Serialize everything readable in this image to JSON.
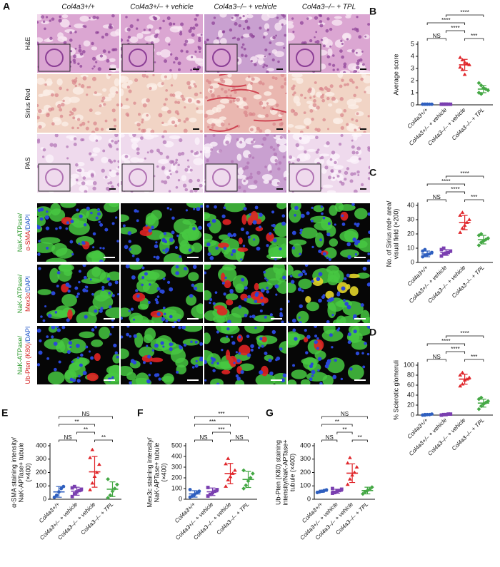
{
  "panel_a": {
    "panel": "A",
    "columns": [
      "Col4a3+/+",
      "Col4a3+/– + vehicle",
      "Col4a3–/– + vehicle",
      "Col4a3–/– + TPL"
    ],
    "rows": [
      {
        "lines": [
          [
            {
              "text": "H&E",
              "color": "#222222"
            }
          ]
        ]
      },
      {
        "lines": [
          [
            {
              "text": "Sirius Red",
              "color": "#222222"
            }
          ]
        ]
      },
      {
        "lines": [
          [
            {
              "text": "PAS",
              "color": "#222222"
            }
          ]
        ]
      },
      {
        "lines": [
          [
            {
              "text": "NaK-ATPase/",
              "color": "#2e9a2e"
            }
          ],
          [
            {
              "text": "α-SMA",
              "color": "#d42020"
            },
            {
              "text": "/DAPI",
              "color": "#1f55c8"
            }
          ]
        ]
      },
      {
        "lines": [
          [
            {
              "text": "NaK-ATPase/",
              "color": "#2e9a2e"
            }
          ],
          [
            {
              "text": "Mex3c",
              "color": "#d42020"
            },
            {
              "text": "/DAPI",
              "color": "#1f55c8"
            }
          ]
        ]
      },
      {
        "lines": [
          [
            {
              "text": "NaK-ATPase/",
              "color": "#2e9a2e"
            }
          ],
          [
            {
              "text": "Ub-Pten (K80)",
              "color": "#d42020"
            },
            {
              "text": "/DAPI",
              "color": "#1f55c8"
            }
          ]
        ]
      }
    ]
  },
  "chart_data": [
    {
      "type": "dot",
      "panel": "B",
      "ylabel": [
        "Average score"
      ],
      "categories": [
        "Col4a3+/+",
        "Col4a3+/– + vehicle",
        "Col4a3–/– + vehicle",
        "Col4a3–/– + TPL"
      ],
      "colors": [
        "#2f5fbf",
        "#7a3fb0",
        "#e0262b",
        "#45a845"
      ],
      "markers": [
        "circle",
        "square",
        "triangle",
        "diamond"
      ],
      "points": [
        [
          0.05,
          0.05,
          0.05,
          0.05,
          0.05,
          0.05,
          0.05,
          0.05
        ],
        [
          0.05,
          0.05,
          0.05,
          0.05,
          0.05,
          0.05,
          0.05,
          0.05
        ],
        [
          3.9,
          3.7,
          3.5,
          3.4,
          3.3,
          3.1,
          2.9,
          2.5
        ],
        [
          1.8,
          1.6,
          1.4,
          1.3,
          1.2,
          1.0,
          0.9
        ]
      ],
      "means": [
        0.05,
        0.05,
        3.3,
        1.3
      ],
      "sd": [
        0,
        0,
        0.45,
        0.3
      ],
      "ylim": [
        0,
        5
      ],
      "yticks": [
        0,
        1,
        2,
        3,
        4,
        5
      ],
      "comparisons": [
        {
          "groups": [
            0,
            1
          ],
          "label": "NS"
        },
        {
          "groups": [
            1,
            2
          ],
          "label": "****"
        },
        {
          "groups": [
            2,
            3
          ],
          "label": "***"
        },
        {
          "groups": [
            0,
            2
          ],
          "label": "****"
        },
        {
          "groups": [
            1,
            3
          ],
          "label": "****"
        }
      ]
    },
    {
      "type": "dot",
      "panel": "C",
      "ylabel": [
        "No. of Sirius red+ area/",
        "visual field (×200)"
      ],
      "categories": [
        "Col4a3+/+",
        "Col4a3+/– + vehicle",
        "Col4a3–/– + vehicle",
        "Col4a3–/– + TPL"
      ],
      "colors": [
        "#2f5fbf",
        "#7a3fb0",
        "#e0262b",
        "#45a845"
      ],
      "markers": [
        "circle",
        "square",
        "triangle",
        "diamond"
      ],
      "points": [
        [
          4,
          5,
          5.5,
          6,
          7,
          8,
          9
        ],
        [
          4.5,
          6,
          6.5,
          7,
          8,
          9,
          10
        ],
        [
          21,
          24,
          26,
          28,
          30,
          33,
          35
        ],
        [
          12,
          14,
          15,
          16,
          17,
          19,
          20
        ]
      ],
      "means": [
        6,
        7,
        28,
        16
      ],
      "sd": [
        2,
        2,
        5,
        3
      ],
      "ylim": [
        0,
        40
      ],
      "yticks": [
        0,
        10,
        20,
        30,
        40
      ],
      "comparisons": [
        {
          "groups": [
            0,
            1
          ],
          "label": "NS"
        },
        {
          "groups": [
            1,
            2
          ],
          "label": "****"
        },
        {
          "groups": [
            2,
            3
          ],
          "label": "***"
        },
        {
          "groups": [
            0,
            2
          ],
          "label": "****"
        },
        {
          "groups": [
            1,
            3
          ],
          "label": "****"
        }
      ]
    },
    {
      "type": "dot",
      "panel": "D",
      "ylabel": [
        "% Sclerotic glomeruli"
      ],
      "categories": [
        "Col4a3+/+",
        "Col4a3+/– + vehicle",
        "Col4a3–/– + vehicle",
        "Col4a3–/– + TPL"
      ],
      "colors": [
        "#2f5fbf",
        "#7a3fb0",
        "#e0262b",
        "#45a845"
      ],
      "markers": [
        "circle",
        "square",
        "triangle",
        "diamond"
      ],
      "points": [
        [
          0,
          0,
          1,
          1,
          2,
          0,
          1
        ],
        [
          0,
          1,
          1,
          2,
          2,
          0
        ],
        [
          58,
          62,
          70,
          72,
          75,
          80,
          85
        ],
        [
          12,
          18,
          22,
          25,
          28,
          32,
          35
        ]
      ],
      "means": [
        1,
        1,
        72,
        24
      ],
      "sd": [
        1,
        1,
        10,
        8
      ],
      "ylim": [
        0,
        100
      ],
      "yticks": [
        0,
        20,
        40,
        60,
        80,
        100
      ],
      "comparisons": [
        {
          "groups": [
            0,
            1
          ],
          "label": "NS"
        },
        {
          "groups": [
            1,
            2
          ],
          "label": "****"
        },
        {
          "groups": [
            2,
            3
          ],
          "label": "***"
        },
        {
          "groups": [
            0,
            2
          ],
          "label": "****"
        },
        {
          "groups": [
            1,
            3
          ],
          "label": "****"
        }
      ]
    },
    {
      "type": "dot",
      "panel": "E",
      "ylabel": [
        "α-SMA staining intensity/",
        "NaK-APTase+ tubule",
        "(×400)"
      ],
      "categories": [
        "Col4a3+/+",
        "Col4a3+/– + vehicle",
        "Col4a3–/– + vehicle",
        "Col4a3–/– + TPL"
      ],
      "colors": [
        "#2f5fbf",
        "#7a3fb0",
        "#e0262b",
        "#45a845"
      ],
      "markers": [
        "circle",
        "square",
        "triangle",
        "diamond"
      ],
      "points": [
        [
          15,
          30,
          55,
          80,
          95
        ],
        [
          20,
          40,
          55,
          65,
          75,
          85,
          95
        ],
        [
          70,
          120,
          170,
          200,
          260,
          310,
          370
        ],
        [
          10,
          30,
          60,
          80,
          110,
          150
        ]
      ],
      "means": [
        55,
        60,
        205,
        75
      ],
      "sd": [
        40,
        30,
        115,
        55
      ],
      "ylim": [
        0,
        400
      ],
      "yticks": [
        0,
        100,
        200,
        300,
        400
      ],
      "comparisons": [
        {
          "groups": [
            0,
            1
          ],
          "label": "NS"
        },
        {
          "groups": [
            1,
            2
          ],
          "label": "**"
        },
        {
          "groups": [
            2,
            3
          ],
          "label": "**"
        },
        {
          "groups": [
            0,
            2
          ],
          "label": "**"
        },
        {
          "groups": [
            0,
            3
          ],
          "label": "NS"
        }
      ]
    },
    {
      "type": "dot",
      "panel": "F",
      "ylabel": [
        "Mex3c staining intensity/",
        "NaK-APTase+ tubule",
        "(×400)"
      ],
      "categories": [
        "Col4a3+/+",
        "Col4a3+/– + vehicle",
        "Col4a3–/– + vehicle",
        "Col4a3–/– + TPL"
      ],
      "colors": [
        "#2f5fbf",
        "#7a3fb0",
        "#e0262b",
        "#45a845"
      ],
      "markers": [
        "circle",
        "square",
        "triangle",
        "diamond"
      ],
      "points": [
        [
          20,
          30,
          45,
          60,
          75,
          90
        ],
        [
          30,
          45,
          60,
          75,
          90,
          110
        ],
        [
          120,
          180,
          210,
          240,
          270,
          330,
          380
        ],
        [
          100,
          130,
          170,
          200,
          240,
          270
        ]
      ],
      "means": [
        50,
        70,
        240,
        185
      ],
      "sd": [
        30,
        35,
        95,
        75
      ],
      "ylim": [
        0,
        500
      ],
      "yticks": [
        0,
        100,
        200,
        300,
        400,
        500
      ],
      "comparisons": [
        {
          "groups": [
            0,
            1
          ],
          "label": "NS"
        },
        {
          "groups": [
            1,
            2
          ],
          "label": "***"
        },
        {
          "groups": [
            2,
            3
          ],
          "label": "NS"
        },
        {
          "groups": [
            0,
            2
          ],
          "label": "***"
        },
        {
          "groups": [
            0,
            3
          ],
          "label": "***"
        }
      ]
    },
    {
      "type": "dot",
      "panel": "G",
      "ylabel": [
        "Ub-Pten (K80) staining",
        "intensity/NaK-APTase+",
        "tubule (×400)"
      ],
      "categories": [
        "Col4a3+/+",
        "Col4a3+/– + vehicle",
        "Col4a3–/– + vehicle",
        "Col4a3–/– + TPL"
      ],
      "colors": [
        "#2f5fbf",
        "#7a3fb0",
        "#e0262b",
        "#45a845"
      ],
      "markers": [
        "circle",
        "square",
        "triangle",
        "diamond"
      ],
      "points": [
        [
          50,
          55,
          60,
          65,
          70
        ],
        [
          45,
          50,
          60,
          65,
          75,
          80
        ],
        [
          110,
          150,
          180,
          200,
          240,
          270,
          310
        ],
        [
          40,
          55,
          65,
          75,
          90
        ]
      ],
      "means": [
        60,
        60,
        195,
        65
      ],
      "sd": [
        8,
        15,
        70,
        25
      ],
      "ylim": [
        0,
        400
      ],
      "yticks": [
        0,
        100,
        200,
        300,
        400
      ],
      "comparisons": [
        {
          "groups": [
            0,
            1
          ],
          "label": "NS"
        },
        {
          "groups": [
            1,
            2
          ],
          "label": "**"
        },
        {
          "groups": [
            2,
            3
          ],
          "label": "**"
        },
        {
          "groups": [
            0,
            2
          ],
          "label": "**"
        },
        {
          "groups": [
            0,
            3
          ],
          "label": "NS"
        }
      ]
    }
  ]
}
